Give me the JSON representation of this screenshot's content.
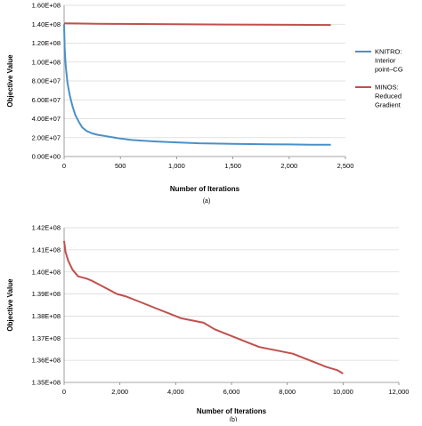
{
  "chart_data": [
    {
      "type": "line",
      "caption": "(a)",
      "xlabel": "Number of Iterations",
      "ylabel": "Objective Value",
      "xlim": [
        0,
        2500
      ],
      "ylim": [
        0,
        160000000
      ],
      "x_ticks": [
        0,
        500,
        1000,
        1500,
        2000,
        2500
      ],
      "x_tick_labels": [
        "0",
        "500",
        "1,000",
        "1,500",
        "2,000",
        "2,500"
      ],
      "y_ticks": [
        0,
        20000000,
        40000000,
        60000000,
        80000000,
        100000000,
        120000000,
        140000000,
        160000000
      ],
      "y_tick_labels": [
        "0.00E+00",
        "2.00E+07",
        "4.00E+07",
        "6.00E+07",
        "8.00E+07",
        "1.00E+08",
        "1.20E+08",
        "1.40E+08",
        "1.60E+08"
      ],
      "grid": "horizontal",
      "legend": "right",
      "series": [
        {
          "name": "KNITRO: Interior point–CG",
          "legend_lines": [
            "KNITRO:",
            "Interior",
            "point–CG"
          ],
          "color": "#4a90c8",
          "x": [
            0,
            5,
            15,
            30,
            50,
            75,
            100,
            130,
            160,
            200,
            250,
            300,
            400,
            500,
            600,
            800,
            1000,
            1200,
            1500,
            1800,
            2000,
            2200,
            2370
          ],
          "y": [
            140000000,
            115000000,
            95000000,
            78000000,
            65000000,
            53000000,
            44000000,
            37000000,
            31000000,
            27000000,
            24500000,
            23000000,
            21000000,
            19000000,
            17500000,
            16000000,
            15000000,
            14000000,
            13500000,
            13000000,
            12800000,
            12500000,
            12500000
          ]
        },
        {
          "name": "MINOS: Reduced Gradient",
          "legend_lines": [
            "MINOS:",
            "Reduced",
            "Gradient"
          ],
          "color": "#c0504d",
          "x": [
            0,
            100,
            300,
            500,
            1000,
            1500,
            2000,
            2370
          ],
          "y": [
            141000000,
            140800000,
            140500000,
            140300000,
            140000000,
            139700000,
            139400000,
            139200000
          ]
        }
      ]
    },
    {
      "type": "line",
      "caption": "(b)",
      "xlabel": "Number of Iterations",
      "ylabel": "Objective Value",
      "xlim": [
        0,
        12000
      ],
      "ylim": [
        135000000,
        142000000
      ],
      "x_ticks": [
        0,
        2000,
        4000,
        6000,
        8000,
        10000,
        12000
      ],
      "x_tick_labels": [
        "0",
        "2,000",
        "4,000",
        "6,000",
        "8,000",
        "10,000",
        "12,000"
      ],
      "y_ticks": [
        135000000,
        136000000,
        137000000,
        138000000,
        139000000,
        140000000,
        141000000,
        142000000
      ],
      "y_tick_labels": [
        "1.35E+08",
        "1.36E+08",
        "1.37E+08",
        "1.38E+08",
        "1.39E+08",
        "1.40E+08",
        "1.41E+08",
        "1.42E+08"
      ],
      "grid": "horizontal",
      "series": [
        {
          "color": "#c0504d",
          "x": [
            0,
            50,
            150,
            300,
            500,
            800,
            1000,
            1300,
            1600,
            1900,
            2200,
            2600,
            3000,
            3400,
            3800,
            4200,
            4600,
            5000,
            5400,
            5800,
            6200,
            6600,
            7000,
            7400,
            7800,
            8200,
            8600,
            9000,
            9400,
            9800,
            10000
          ],
          "y": [
            141400000,
            140900000,
            140500000,
            140100000,
            139800000,
            139700000,
            139600000,
            139400000,
            139200000,
            139000000,
            138900000,
            138700000,
            138500000,
            138300000,
            138100000,
            137900000,
            137800000,
            137700000,
            137400000,
            137200000,
            137000000,
            136800000,
            136600000,
            136500000,
            136400000,
            136300000,
            136100000,
            135900000,
            135700000,
            135550000,
            135400000
          ]
        }
      ]
    }
  ]
}
